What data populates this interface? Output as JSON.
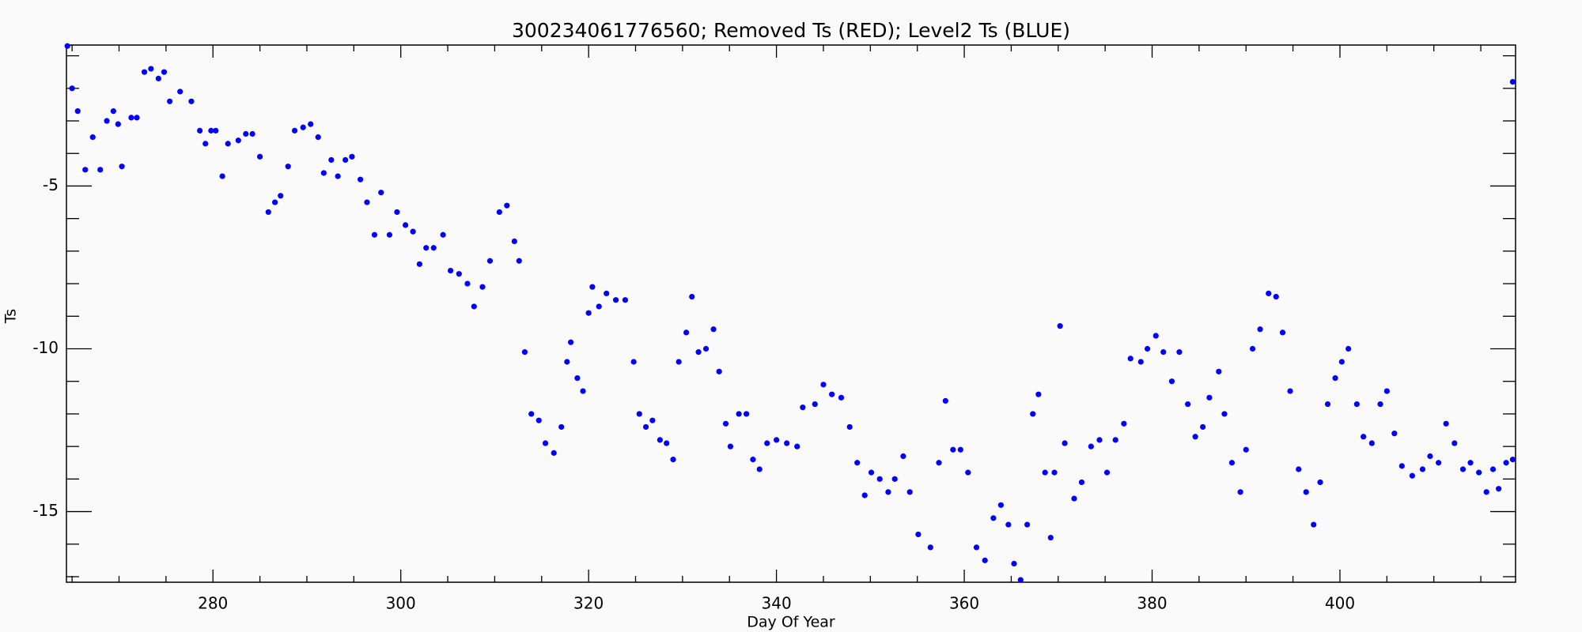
{
  "chart_data": {
    "type": "scatter",
    "title": "300234061776560; Removed Ts (RED); Level2 Ts (BLUE)",
    "x_label": "Day Of Year",
    "y_label": "Ts",
    "color": "#0000ff",
    "xlim": [
      264.4,
      418.7
    ],
    "ylim": [
      -17.17,
      -0.67
    ],
    "xticks": [
      280,
      300,
      320,
      340,
      360,
      380,
      400
    ],
    "xminorticks": [
      265,
      270,
      275,
      285,
      290,
      295,
      305,
      310,
      315,
      325,
      330,
      335,
      345,
      350,
      355,
      365,
      370,
      375,
      385,
      390,
      395,
      405,
      410,
      415
    ],
    "yticks": [
      -5,
      -10,
      -15
    ],
    "yminorticks": [
      -1,
      -2,
      -3,
      -4,
      -6,
      -7,
      -8,
      -9,
      -11,
      -12,
      -13,
      -14,
      -16,
      -17
    ],
    "x": [
      264.5,
      265,
      265.6,
      266.4,
      267.2,
      268,
      268.7,
      269.4,
      269.9,
      270.3,
      271.3,
      271.9,
      272.7,
      273.4,
      274.2,
      274.8,
      275.4,
      276.5,
      277.7,
      278.6,
      279.2,
      279.8,
      280.3,
      281,
      281.6,
      282.7,
      283.5,
      284.2,
      285,
      285.9,
      286.6,
      287.2,
      288,
      288.7,
      289.6,
      290.4,
      291.2,
      291.8,
      292.6,
      293.3,
      294.1,
      294.8,
      295.7,
      296.4,
      297.2,
      297.9,
      298.8,
      299.6,
      300.5,
      301.3,
      302,
      302.7,
      303.5,
      304.5,
      305.3,
      306.2,
      307.1,
      307.8,
      308.7,
      309.5,
      310.5,
      311.3,
      312.1,
      312.6,
      313.2,
      313.9,
      314.7,
      315.4,
      316.3,
      317.1,
      317.7,
      318.1,
      318.8,
      319.4,
      320,
      320.4,
      321.1,
      321.9,
      322.9,
      323.9,
      324.8,
      325.4,
      326.1,
      326.8,
      327.6,
      328.3,
      329,
      329.6,
      330.4,
      331,
      331.7,
      332.5,
      333.3,
      333.9,
      334.6,
      335.1,
      336,
      336.8,
      337.5,
      338.2,
      339,
      340,
      341.1,
      342.2,
      342.8,
      344.1,
      345,
      345.9,
      346.9,
      347.8,
      348.6,
      349.4,
      350.1,
      351,
      351.9,
      352.6,
      353.5,
      354.2,
      355.1,
      356.4,
      357.3,
      358,
      358.8,
      359.6,
      360.4,
      361.3,
      362.2,
      363.1,
      363.9,
      364.7,
      365.3,
      366,
      366.7,
      367.3,
      367.9,
      368.6,
      369.2,
      369.6,
      370.2,
      370.7,
      371.7,
      372.5,
      373.5,
      374.4,
      375.2,
      376.1,
      377,
      377.7,
      378.8,
      379.5,
      380.4,
      381.2,
      382.1,
      382.9,
      383.8,
      384.6,
      385.4,
      386.1,
      387.1,
      387.7,
      388.5,
      389.4,
      390,
      390.7,
      391.5,
      392.4,
      393.2,
      393.9,
      394.7,
      395.6,
      396.4,
      397.2,
      397.9,
      398.7,
      399.5,
      400.2,
      400.9,
      401.8,
      402.5,
      403.4,
      404.3,
      405,
      405.8,
      406.6,
      407.7,
      408.8,
      409.6,
      410.5,
      411.3,
      412.2,
      413.1,
      413.9,
      414.8,
      415.6,
      416.3,
      416.9,
      417.7,
      418.4,
      418.4
    ],
    "values": [
      -0.7,
      -2.0,
      -2.7,
      -4.5,
      -3.5,
      -4.5,
      -3.0,
      -2.7,
      -3.1,
      -4.4,
      -2.9,
      -2.9,
      -1.5,
      -1.4,
      -1.7,
      -1.5,
      -2.4,
      -2.1,
      -2.4,
      -3.3,
      -3.7,
      -3.3,
      -3.3,
      -4.7,
      -3.7,
      -3.6,
      -3.4,
      -3.4,
      -4.1,
      -5.8,
      -5.5,
      -5.3,
      -4.4,
      -3.3,
      -3.2,
      -3.1,
      -3.5,
      -4.6,
      -4.2,
      -4.7,
      -4.2,
      -4.1,
      -4.8,
      -5.5,
      -6.5,
      -5.2,
      -6.5,
      -5.8,
      -6.2,
      -6.4,
      -7.4,
      -6.9,
      -6.9,
      -6.5,
      -7.6,
      -7.7,
      -8.0,
      -8.7,
      -8.1,
      -7.3,
      -5.8,
      -5.6,
      -6.7,
      -7.3,
      -10.1,
      -12.0,
      -12.2,
      -12.9,
      -13.2,
      -12.4,
      -10.4,
      -9.8,
      -10.9,
      -11.3,
      -8.9,
      -8.1,
      -8.7,
      -8.3,
      -8.5,
      -8.5,
      -10.4,
      -12.0,
      -12.4,
      -12.2,
      -12.8,
      -12.9,
      -13.4,
      -10.4,
      -9.5,
      -8.4,
      -10.1,
      -10.0,
      -9.4,
      -10.7,
      -12.3,
      -13.0,
      -12.0,
      -12.0,
      -13.4,
      -13.7,
      -12.9,
      -12.8,
      -12.9,
      -13.0,
      -11.8,
      -11.7,
      -11.1,
      -11.4,
      -11.5,
      -12.4,
      -13.5,
      -14.5,
      -13.8,
      -14.0,
      -14.4,
      -14.0,
      -13.3,
      -14.4,
      -15.7,
      -16.1,
      -13.5,
      -11.6,
      -13.1,
      -13.1,
      -13.8,
      -16.1,
      -16.5,
      -15.2,
      -14.8,
      -15.4,
      -16.6,
      -17.1,
      -15.4,
      -12.0,
      -11.4,
      -13.8,
      -15.8,
      -13.8,
      -9.3,
      -12.9,
      -14.6,
      -14.1,
      -13.0,
      -12.8,
      -13.8,
      -12.8,
      -12.3,
      -10.3,
      -10.4,
      -10.0,
      -9.6,
      -10.1,
      -11.0,
      -10.1,
      -11.7,
      -12.7,
      -12.4,
      -11.5,
      -10.7,
      -12.0,
      -13.5,
      -14.4,
      -13.1,
      -10.0,
      -9.4,
      -8.3,
      -8.4,
      -9.5,
      -11.3,
      -13.7,
      -14.4,
      -15.4,
      -14.1,
      -11.7,
      -10.9,
      -10.4,
      -10.0,
      -11.7,
      -12.7,
      -12.9,
      -11.7,
      -11.3,
      -12.6,
      -13.6,
      -13.9,
      -13.7,
      -13.3,
      -13.5,
      -12.3,
      -12.9,
      -13.7,
      -13.5,
      -13.8,
      -14.4,
      -13.7,
      -14.3,
      -13.5,
      -13.4,
      -1.8
    ]
  }
}
